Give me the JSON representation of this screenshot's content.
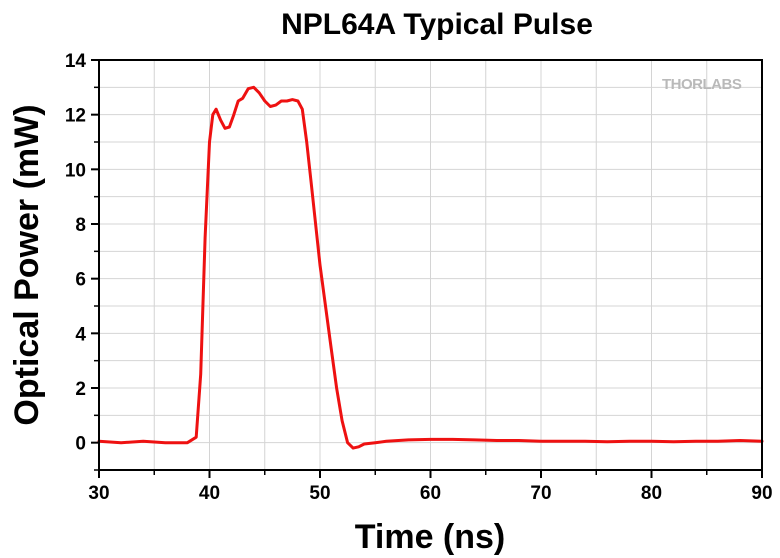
{
  "chart_data": {
    "type": "line",
    "title": "NPL64A Typical Pulse",
    "xlabel": "Time (ns)",
    "ylabel": "Optical Power (mW)",
    "xlim": [
      30,
      90
    ],
    "ylim": [
      -1,
      14
    ],
    "xticks": [
      30,
      40,
      50,
      60,
      70,
      80,
      90
    ],
    "yticks": [
      0,
      2,
      4,
      6,
      8,
      10,
      12,
      14
    ],
    "grid": true,
    "watermark": "THORLABS",
    "series": [
      {
        "color": "#ee1111",
        "x": [
          30,
          32,
          34,
          36,
          38,
          38.8,
          39.2,
          39.6,
          40.0,
          40.3,
          40.6,
          41.0,
          41.4,
          41.8,
          42.2,
          42.6,
          43.0,
          43.5,
          44.0,
          44.5,
          45.0,
          45.5,
          46.0,
          46.5,
          47.0,
          47.5,
          48.0,
          48.4,
          48.8,
          49.2,
          49.6,
          50.0,
          50.5,
          51.0,
          51.5,
          52.0,
          52.5,
          53.0,
          53.5,
          54.0,
          55,
          56,
          58,
          60,
          62,
          64,
          66,
          68,
          70,
          72,
          74,
          76,
          78,
          80,
          82,
          84,
          86,
          88,
          90
        ],
        "y": [
          0.05,
          0.0,
          0.05,
          0.0,
          0.0,
          0.2,
          2.5,
          7.5,
          11.0,
          12.0,
          12.2,
          11.8,
          11.5,
          11.55,
          12.0,
          12.5,
          12.6,
          12.95,
          13.0,
          12.8,
          12.5,
          12.3,
          12.35,
          12.5,
          12.5,
          12.55,
          12.5,
          12.2,
          11.0,
          9.5,
          8.0,
          6.5,
          5.0,
          3.5,
          2.0,
          0.8,
          0.0,
          -0.2,
          -0.15,
          -0.05,
          0.0,
          0.05,
          0.1,
          0.12,
          0.12,
          0.1,
          0.08,
          0.08,
          0.05,
          0.05,
          0.05,
          0.03,
          0.05,
          0.05,
          0.03,
          0.05,
          0.05,
          0.08,
          0.05
        ]
      }
    ]
  }
}
